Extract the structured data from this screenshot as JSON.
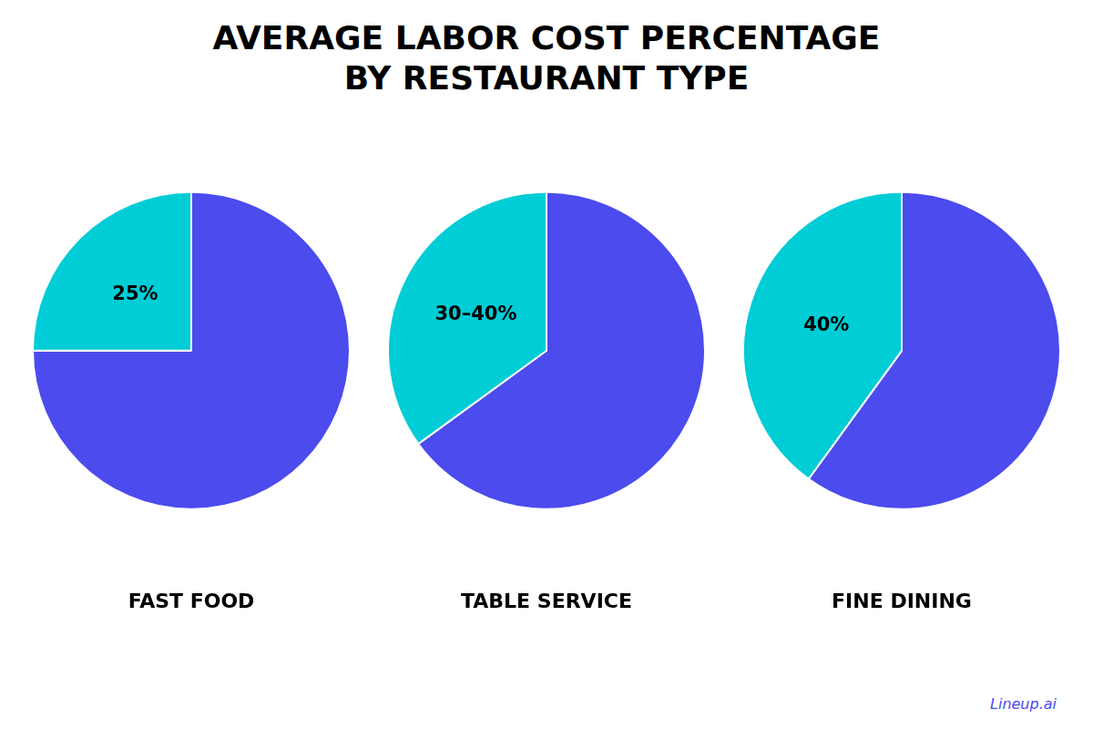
{
  "title": [
    "AVERAGE LABOR COST PERCENTAGE",
    "BY RESTAURANT TYPE"
  ],
  "annotations": [
    {
      "text": "Lineup.ai",
      "color": "#4B4BEE"
    }
  ],
  "chart_data": [
    {
      "type": "pie",
      "title": "FAST FOOD",
      "values": [
        75,
        25
      ],
      "colors": [
        "#4B4BEE",
        "#00CDD6"
      ],
      "value_labels": [
        null,
        "25%"
      ],
      "legend": false
    },
    {
      "type": "pie",
      "title": "TABLE SERVICE",
      "values": [
        65,
        35
      ],
      "colors": [
        "#4B4BEE",
        "#00CDD6"
      ],
      "value_labels": [
        null,
        "30–40%"
      ],
      "legend": false
    },
    {
      "type": "pie",
      "title": "FINE DINING",
      "values": [
        60,
        40
      ],
      "colors": [
        "#4B4BEE",
        "#00CDD6"
      ],
      "value_labels": [
        null,
        "40%"
      ],
      "legend": false
    }
  ]
}
